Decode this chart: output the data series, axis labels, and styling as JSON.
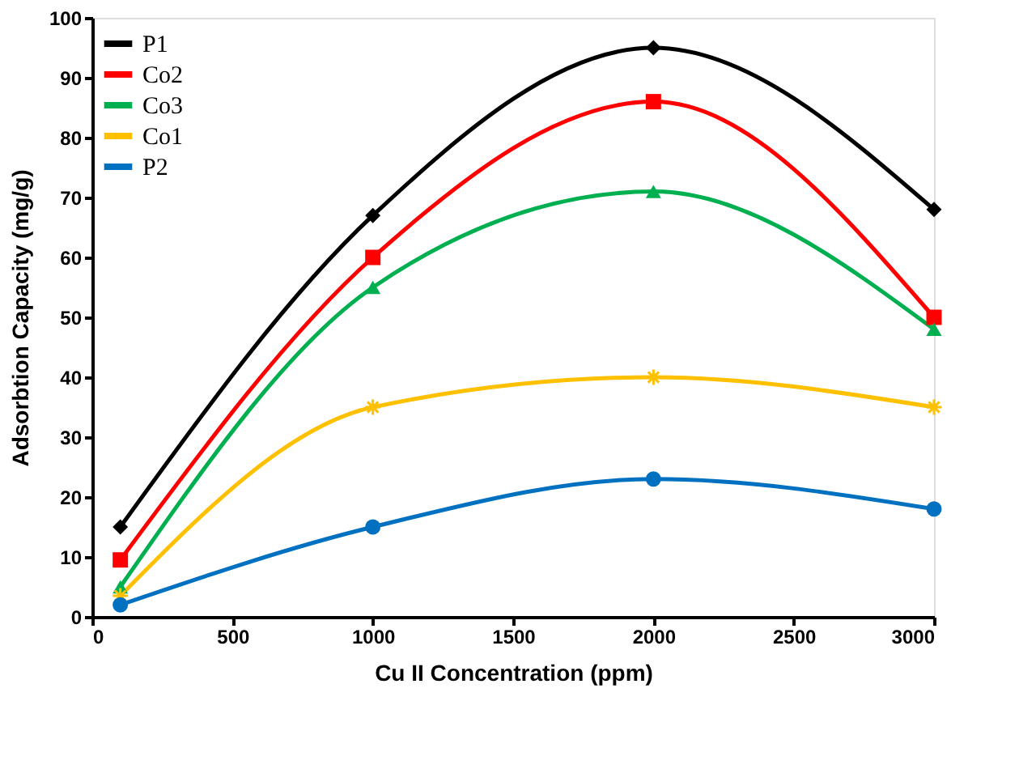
{
  "chart_data": {
    "type": "line",
    "xlabel": "Cu II Concentration (ppm)",
    "ylabel": "Adsorbtion Capacity (mg/g)",
    "x": [
      100,
      1000,
      2000,
      3000
    ],
    "series": [
      {
        "name": "P1",
        "color": "#000000",
        "marker": "diamond",
        "values": [
          15,
          67,
          95,
          68
        ]
      },
      {
        "name": "Co2",
        "color": "#ff0000",
        "marker": "square",
        "values": [
          9.5,
          60,
          86,
          50
        ]
      },
      {
        "name": "Co3",
        "color": "#00b050",
        "marker": "triangle",
        "values": [
          5,
          55,
          71,
          48
        ]
      },
      {
        "name": "Co1",
        "color": "#ffc000",
        "marker": "cross",
        "values": [
          3.5,
          35,
          40,
          35
        ]
      },
      {
        "name": "P2",
        "color": "#0070c0",
        "marker": "circle",
        "values": [
          2,
          15,
          23,
          18
        ]
      }
    ],
    "xlim": [
      0,
      3000
    ],
    "xticks": [
      0,
      500,
      1000,
      1500,
      2000,
      2500,
      3000
    ],
    "ylim": [
      0,
      100
    ],
    "yticks": [
      0,
      10,
      20,
      30,
      40,
      50,
      60,
      70,
      80,
      90,
      100
    ],
    "grid": false,
    "legend": "top left",
    "line_style": "solid"
  }
}
